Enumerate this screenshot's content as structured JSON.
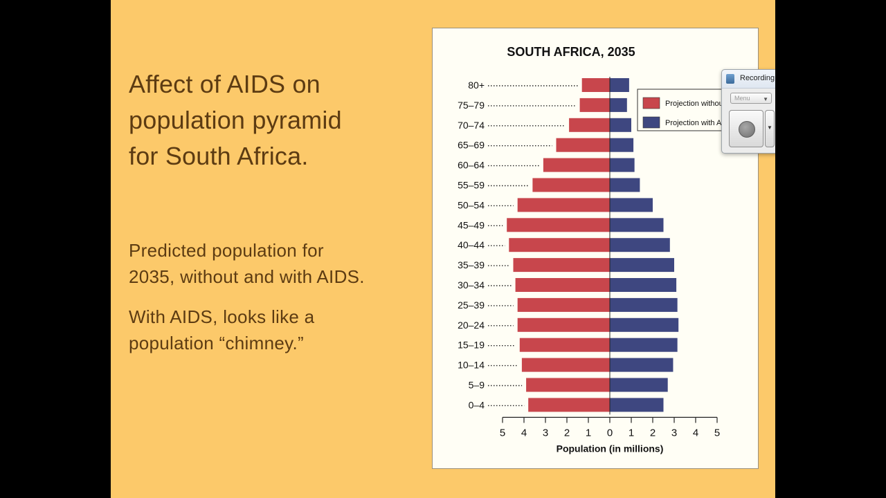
{
  "slide": {
    "title_lines": [
      "Affect of AIDS on",
      "population pyramid",
      "for South Africa."
    ],
    "paragraph1_lines": [
      "Predicted population for",
      "2035, without and with AIDS."
    ],
    "paragraph2_lines": [
      "With AIDS, looks like a",
      "population “chimney.”"
    ],
    "background_color": "#fcc96a",
    "text_color": "#5c3b12"
  },
  "recorder_window": {
    "title": "Recording",
    "menu_label": "Menu",
    "icons": [
      "app-icon",
      "record-icon",
      "dropdown-caret-icon"
    ]
  },
  "chart_data": {
    "type": "bar",
    "orientation": "horizontal-pyramid",
    "title": "SOUTH AFRICA, 2035",
    "xlabel": "Population (in millions)",
    "ylabel": "",
    "categories": [
      "80+",
      "75–79",
      "70–74",
      "65–69",
      "60–64",
      "55–59",
      "50–54",
      "45–49",
      "40–44",
      "35–39",
      "30–34",
      "25–39",
      "20–24",
      "15–19",
      "10–14",
      "5–9",
      "0–4"
    ],
    "series": [
      {
        "name": "Projection without AIDS",
        "side": "left",
        "color": "#c8464c",
        "values": [
          1.3,
          1.4,
          1.9,
          2.5,
          3.1,
          3.6,
          4.3,
          4.8,
          4.7,
          4.5,
          4.4,
          4.3,
          4.3,
          4.2,
          4.1,
          3.9,
          3.8
        ]
      },
      {
        "name": "Projection with AIDS",
        "side": "right",
        "color": "#3e4780",
        "values": [
          0.9,
          0.8,
          1.0,
          1.1,
          1.15,
          1.4,
          2.0,
          2.5,
          2.8,
          3.0,
          3.1,
          3.15,
          3.2,
          3.15,
          2.95,
          2.7,
          2.5
        ]
      }
    ],
    "xlim": [
      -5,
      5
    ],
    "xticks": [
      5,
      4,
      3,
      2,
      1,
      0,
      1,
      2,
      3,
      4,
      5
    ],
    "legend_position": "top-right",
    "grid": false
  }
}
